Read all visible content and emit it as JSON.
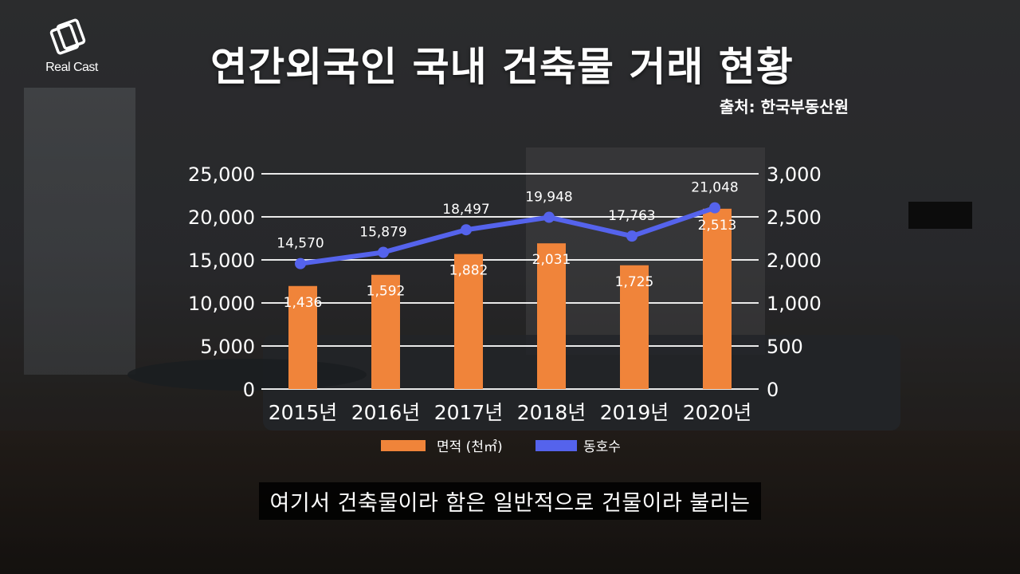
{
  "brand": {
    "name": "Real Cast"
  },
  "title": "연간외국인 국내 건축물 거래 현황",
  "source": "출처: 한국부동산원",
  "caption": "여기서 건축물이라 함은 일반적으로 건물이라 불리는",
  "chart_data": {
    "type": "bar",
    "categories": [
      "2015년",
      "2016년",
      "2017년",
      "2018년",
      "2019년",
      "2020년"
    ],
    "series": [
      {
        "name": "면적 (천㎡)",
        "type": "bar",
        "axis": "right",
        "color": "#f0843a",
        "values": [
          1436,
          1592,
          1882,
          2031,
          1725,
          2513
        ],
        "labels": [
          "1,436",
          "1,592",
          "1,882",
          "2,031",
          "1,725",
          "2,513"
        ]
      },
      {
        "name": "동호수",
        "type": "line",
        "axis": "left",
        "color": "#5563ec",
        "values": [
          14570,
          15879,
          18497,
          19948,
          17763,
          21048
        ],
        "labels": [
          "14,570",
          "15,879",
          "18,497",
          "19,948",
          "17,763",
          "21,048"
        ]
      }
    ],
    "y_left": {
      "min": 0,
      "max": 25000,
      "ticks": [
        "0",
        "5,000",
        "10,000",
        "15,000",
        "20,000",
        "25,000"
      ]
    },
    "y_right": {
      "min": 0,
      "max": 3000,
      "ticks": [
        "0",
        "500",
        "1,000",
        "2,000",
        "2,500",
        "3,000"
      ]
    },
    "grid": true,
    "legend": "bottom"
  }
}
